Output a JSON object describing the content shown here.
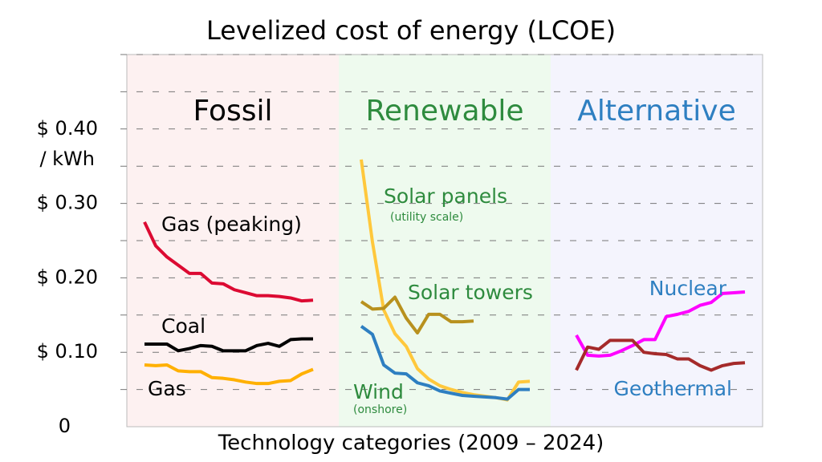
{
  "chart_data": {
    "type": "line",
    "title": "Levelized cost of energy (LCOE)",
    "xlabel": "Technology categories (2009 – 2024)",
    "y_unit": "/ kWh",
    "ylim": [
      0,
      0.5
    ],
    "yticks": [
      {
        "value": 0,
        "label": "0"
      },
      {
        "value": 0.1,
        "label": "$ 0.10"
      },
      {
        "value": 0.2,
        "label": "$ 0.20"
      },
      {
        "value": 0.3,
        "label": "$ 0.30"
      },
      {
        "value": 0.4,
        "label": "$ 0.40"
      }
    ],
    "grid_values": [
      0.05,
      0.1,
      0.15,
      0.2,
      0.25,
      0.3,
      0.35,
      0.4,
      0.45,
      0.5
    ],
    "grid": true,
    "panels": [
      {
        "title": "Fossil",
        "title_color": "#000000",
        "background": "#fdf1f1",
        "series": [
          {
            "name": "Gas (peaking)",
            "color": "#dc0a32",
            "values": [
              0.275,
              0.243,
              0.228,
              0.217,
              0.206,
              0.206,
              0.193,
              0.192,
              0.184,
              0.18,
              0.176,
              0.176,
              0.175,
              0.173,
              0.169,
              0.17
            ]
          },
          {
            "name": "Coal",
            "color": "#000000",
            "values": [
              0.111,
              0.111,
              0.111,
              0.102,
              0.105,
              0.109,
              0.108,
              0.102,
              0.102,
              0.102,
              0.109,
              0.112,
              0.108,
              0.117,
              0.118,
              0.118
            ]
          },
          {
            "name": "Gas",
            "color": "#ffb000",
            "values": [
              0.083,
              0.082,
              0.083,
              0.075,
              0.074,
              0.074,
              0.066,
              0.065,
              0.063,
              0.06,
              0.058,
              0.058,
              0.061,
              0.062,
              0.071,
              0.077
            ]
          }
        ]
      },
      {
        "title": "Renewable",
        "title_color": "#2e8b3e",
        "background": "#eefaee",
        "series": [
          {
            "name": "Solar panels",
            "note": "(utility scale)",
            "color": "#ffc83c",
            "values": [
              0.359,
              0.248,
              0.157,
              0.125,
              0.108,
              0.078,
              0.064,
              0.055,
              0.05,
              0.046,
              0.043,
              0.041,
              0.039,
              0.036,
              0.06,
              0.061
            ]
          },
          {
            "name": "Solar towers",
            "color": "#b8911e",
            "values": [
              0.168,
              0.158,
              0.159,
              0.174,
              0.146,
              0.126,
              0.151,
              0.151,
              0.141,
              0.141,
              0.142,
              null,
              null,
              null,
              null,
              null
            ]
          },
          {
            "name": "Wind",
            "note": "(onshore)",
            "color": "#2e7fc1",
            "values": [
              0.135,
              0.124,
              0.083,
              0.072,
              0.071,
              0.059,
              0.055,
              0.048,
              0.045,
              0.042,
              0.041,
              0.04,
              0.039,
              0.037,
              0.05,
              0.05
            ]
          }
        ]
      },
      {
        "title": "Alternative",
        "title_color": "#2e7fc1",
        "background": "#f4f4fd",
        "series": [
          {
            "name": "Nuclear",
            "color": "#ff00ff",
            "values": [
              0.123,
              0.096,
              0.095,
              0.096,
              0.102,
              0.109,
              0.117,
              0.117,
              0.148,
              0.151,
              0.155,
              0.163,
              0.167,
              0.179,
              0.18,
              0.181
            ]
          },
          {
            "name": "Geothermal",
            "color": "#a52a2a",
            "values": [
              0.076,
              0.107,
              0.104,
              0.116,
              0.116,
              0.116,
              0.1,
              0.098,
              0.097,
              0.091,
              0.091,
              0.082,
              0.076,
              0.082,
              0.085,
              0.086
            ]
          }
        ]
      }
    ]
  }
}
